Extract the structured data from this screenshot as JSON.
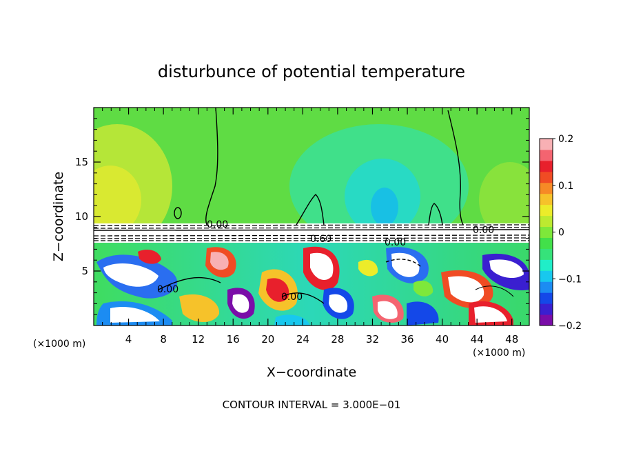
{
  "chart_data": {
    "type": "heatmap",
    "title": "disturbunce of potential temperature",
    "xlabel": "X−coordinate",
    "ylabel": "Z−coordinate",
    "x_unit": "(×1000 m)",
    "z_unit": "(×1000 m)",
    "xlim": [
      0,
      50
    ],
    "ylim": [
      0,
      20
    ],
    "x_ticks": [
      4,
      8,
      12,
      16,
      20,
      24,
      28,
      32,
      36,
      40,
      44,
      48
    ],
    "x_tick_labels": [
      "4",
      "8",
      "12",
      "16",
      "20",
      "24",
      "28",
      "32",
      "36",
      "40",
      "44",
      "48"
    ],
    "y_ticks": [
      5,
      10,
      15
    ],
    "y_tick_labels": [
      "5",
      "10",
      "15"
    ],
    "colorbar": {
      "range": [
        -0.2,
        0.2
      ],
      "ticks": [
        0.2,
        0.1,
        0,
        -0.1,
        -0.2
      ],
      "tick_labels": [
        "0.2",
        "0.1",
        "0",
        "−0.1",
        "−0.2"
      ],
      "colors": [
        "#7a0da8",
        "#3a1fd0",
        "#1448e8",
        "#1c8cf2",
        "#18c8ee",
        "#20eec8",
        "#36e27a",
        "#42e04a",
        "#7ee83a",
        "#bcea30",
        "#ecec2a",
        "#f6c22a",
        "#f68a26",
        "#f04c24",
        "#e8202c",
        "#f46470",
        "#f8b0b4"
      ]
    },
    "contour_labels": [
      "0.00",
      "0.60",
      "0.00",
      "0.00",
      "0.00",
      "0.00"
    ],
    "contour_interval": "CONTOUR INTERVAL = 3.000E−01"
  }
}
